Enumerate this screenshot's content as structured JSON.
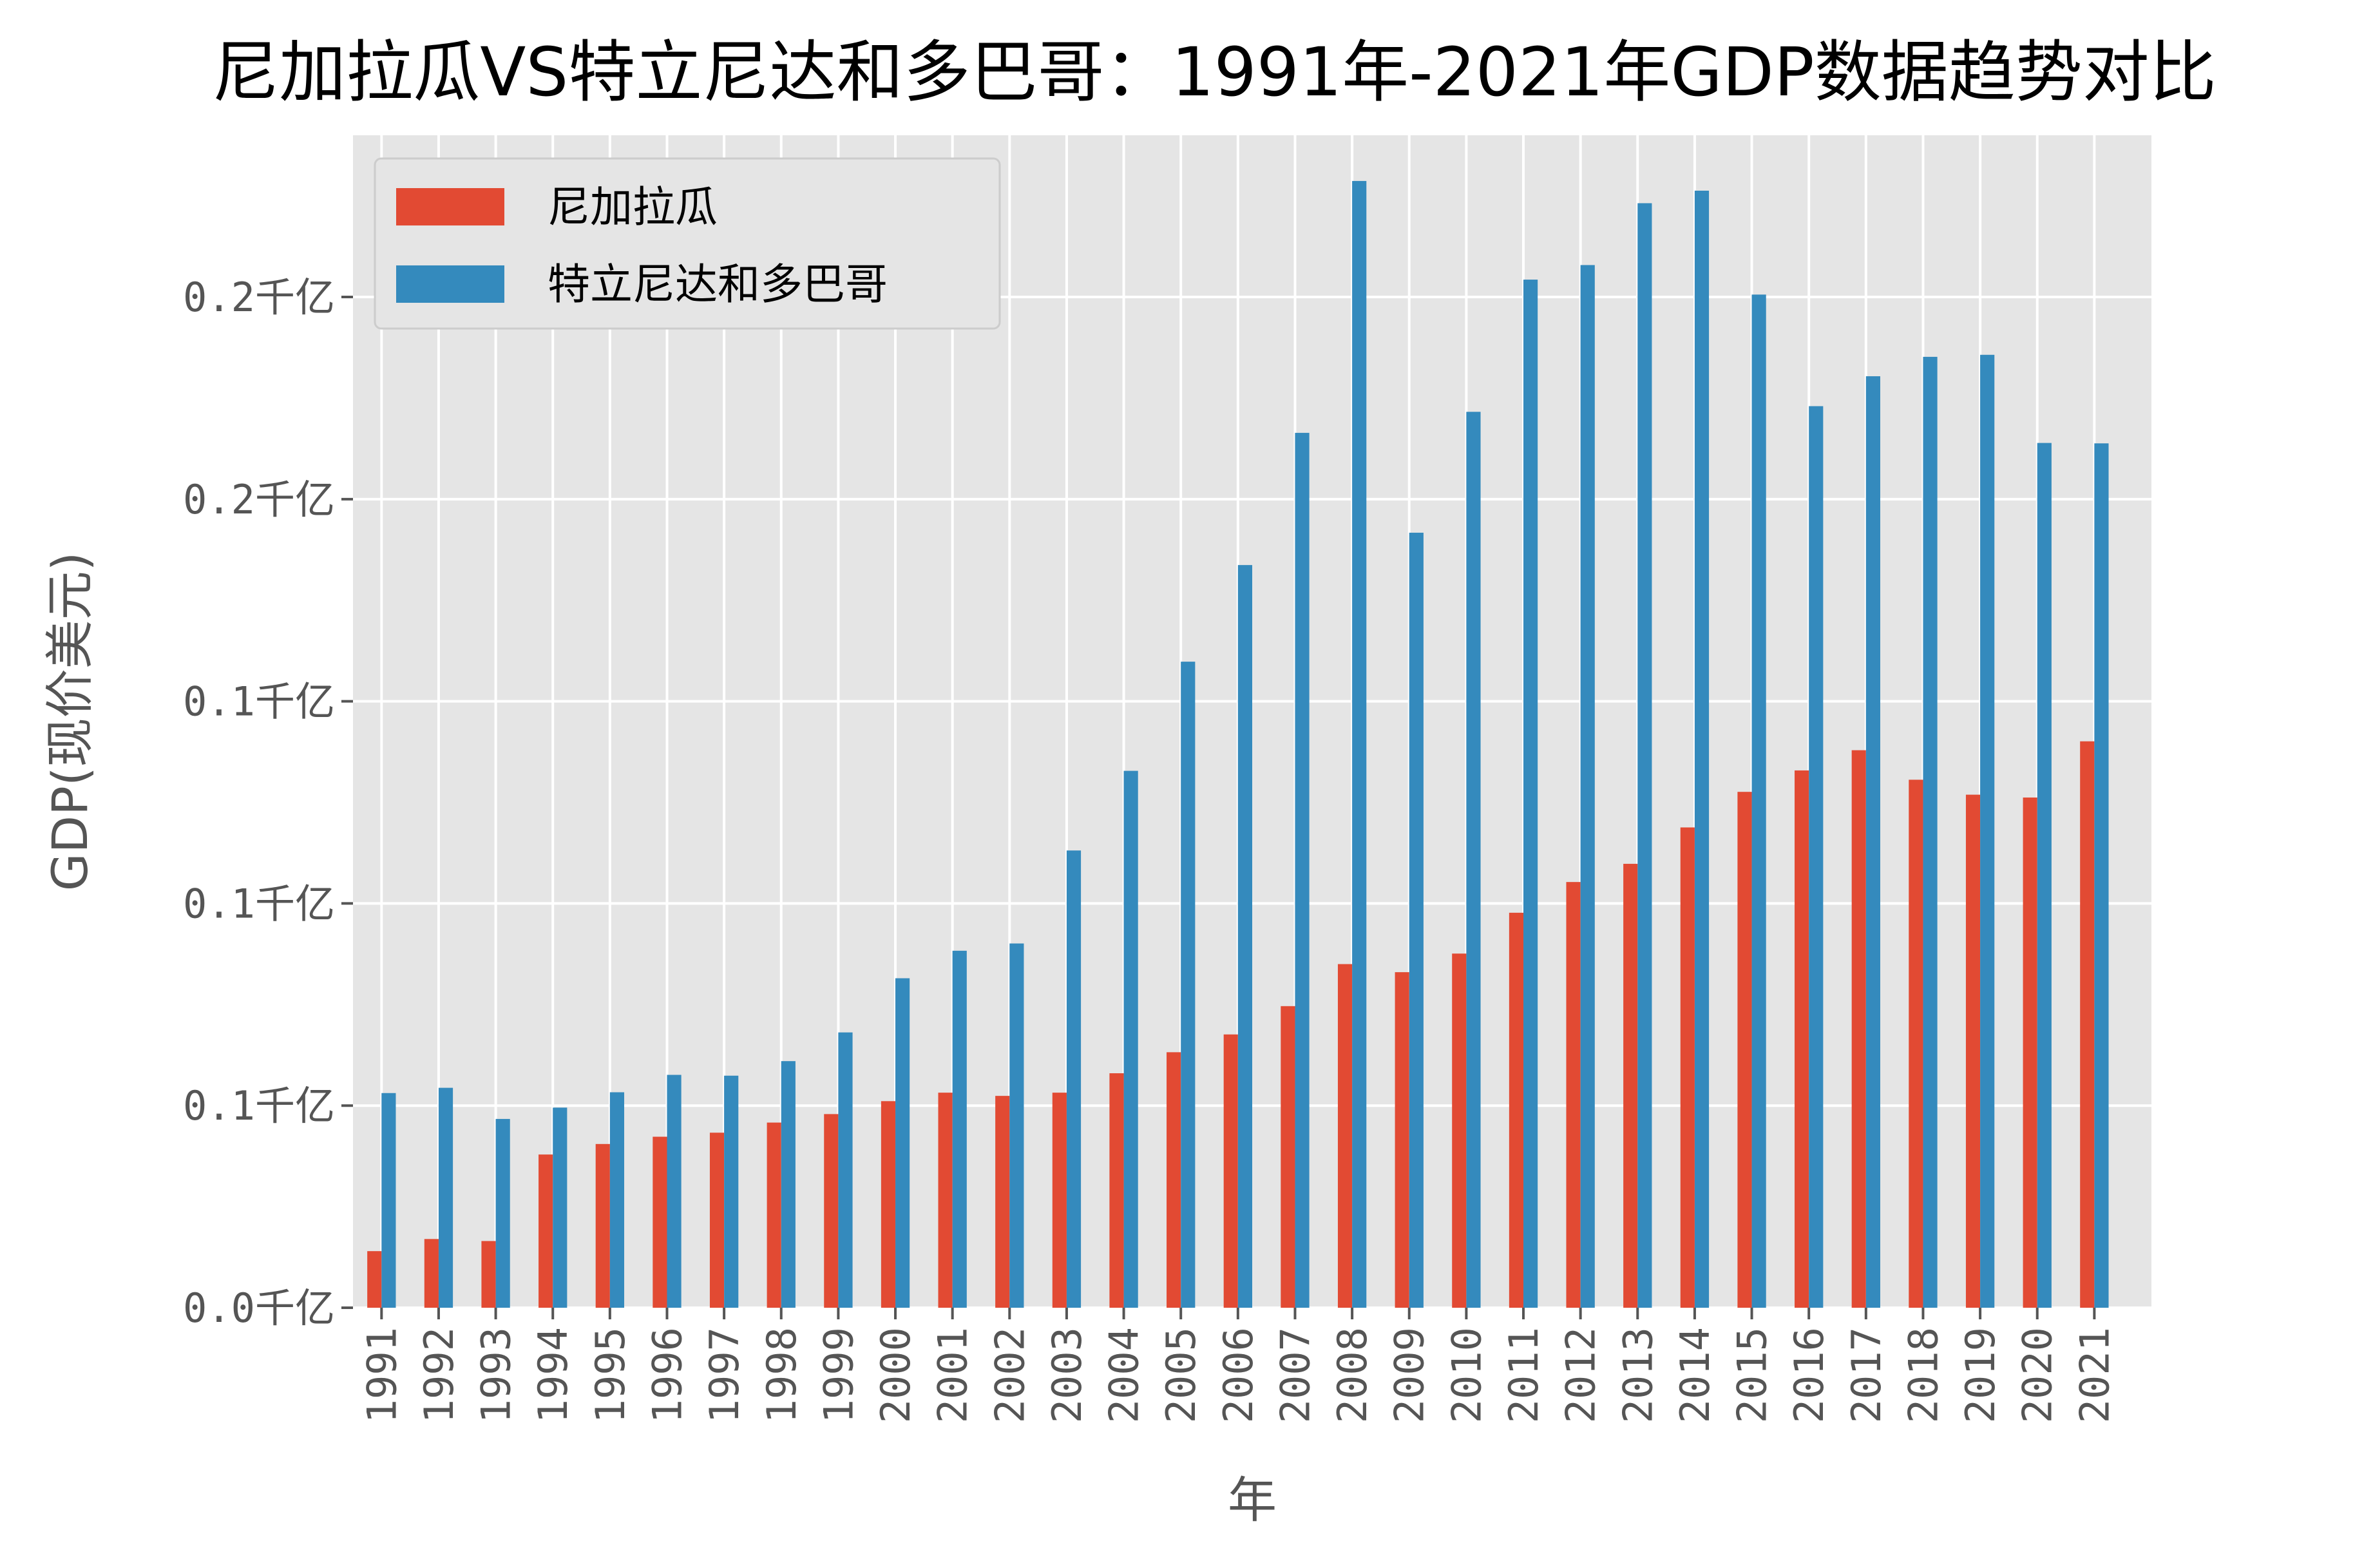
{
  "chart_data": {
    "type": "bar",
    "title": "尼加拉瓜VS特立尼达和多巴哥：1991年-2021年GDP数据趋势对比",
    "xlabel": "年",
    "ylabel": "GDP(现价美元)",
    "grid": true,
    "legend_position": "top-left",
    "ylim": [
      0,
      29000000000
    ],
    "yticks": [
      {
        "value": 0,
        "label": "0.0千亿"
      },
      {
        "value": 5000000000,
        "label": "0.1千亿"
      },
      {
        "value": 10000000000,
        "label": "0.1千亿"
      },
      {
        "value": 15000000000,
        "label": "0.1千亿"
      },
      {
        "value": 20000000000,
        "label": "0.2千亿"
      },
      {
        "value": 25000000000,
        "label": "0.2千亿"
      }
    ],
    "categories": [
      "1991",
      "1992",
      "1993",
      "1994",
      "1995",
      "1996",
      "1997",
      "1998",
      "1999",
      "2000",
      "2001",
      "2002",
      "2003",
      "2004",
      "2005",
      "2006",
      "2007",
      "2008",
      "2009",
      "2010",
      "2011",
      "2012",
      "2013",
      "2014",
      "2015",
      "2016",
      "2017",
      "2018",
      "2019",
      "2020",
      "2021"
    ],
    "series": [
      {
        "name": "尼加拉瓜",
        "color": "#E24A33",
        "values": [
          1400000000,
          1700000000,
          1650000000,
          3790000000,
          4050000000,
          4230000000,
          4330000000,
          4580000000,
          4790000000,
          5110000000,
          5320000000,
          5240000000,
          5320000000,
          5800000000,
          6320000000,
          6760000000,
          7460000000,
          8500000000,
          8300000000,
          8760000000,
          9770000000,
          10530000000,
          10980000000,
          11880000000,
          12760000000,
          13290000000,
          13790000000,
          13060000000,
          12690000000,
          12620000000,
          14010000000
        ]
      },
      {
        "name": "特立尼达和多巴哥",
        "color": "#348ABD",
        "values": [
          5310000000,
          5440000000,
          4670000000,
          4950000000,
          5330000000,
          5760000000,
          5740000000,
          6100000000,
          6810000000,
          8150000000,
          8830000000,
          9010000000,
          11310000000,
          13280000000,
          15980000000,
          18370000000,
          21640000000,
          27870000000,
          19170000000,
          22160000000,
          25430000000,
          25790000000,
          27320000000,
          27630000000,
          25060000000,
          22300000000,
          23040000000,
          23520000000,
          23570000000,
          21390000000,
          21380000000
        ]
      }
    ]
  }
}
